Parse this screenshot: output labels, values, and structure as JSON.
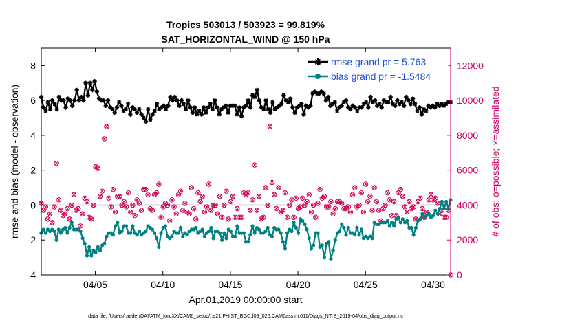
{
  "chart_data": {
    "type": "line",
    "title_line1": "Tropics 503013 / 503923 = 99.819%",
    "title_line2": "SAT_HORIZONTAL_WIND @ 150 hPa",
    "xlabel": "Apr.01,2019 00:00:00 start",
    "ylabel_left": "rmse and bias (model - observation)",
    "ylabel_right": "# of obs: o=possible; ×=assimilated",
    "footnote": "data file: /Users/raeder/DAI/ATM_forcXX/CAM6_setup/f.e21.FHIST_BGC.f09_025.CAM6assim.011/Diags_NTrS_2019-04/obs_diag_output.nc",
    "x_range": [
      1,
      31.3
    ],
    "x_ticks": [
      5,
      10,
      15,
      20,
      25,
      30
    ],
    "x_tick_labels": [
      "04/05",
      "04/10",
      "04/15",
      "04/20",
      "04/25",
      "04/30"
    ],
    "ylim_left": [
      -4,
      9
    ],
    "yticks_left": [
      -4,
      -2,
      0,
      2,
      4,
      6,
      8
    ],
    "ylim_right": [
      0,
      13000
    ],
    "yticks_right": [
      0,
      2000,
      4000,
      6000,
      8000,
      10000,
      12000
    ],
    "legend_location": "top-right",
    "colors": {
      "rmse": "#000000",
      "bias": "#008080",
      "obs": "#cc0055",
      "right_axis": "#cc0066",
      "zero_line": "#bbbbbb"
    },
    "series": [
      {
        "name": "rmse",
        "legend": "rmse grand pr = 5.763",
        "values": [
          6.2,
          5.6,
          5.4,
          5.9,
          5.5,
          6.0,
          5.8,
          5.5,
          6.2,
          6.0,
          6.0,
          5.6,
          6.1,
          6.0,
          5.7,
          6.0,
          6.6,
          6.0,
          6.2,
          6.0,
          7.0,
          6.3,
          7.0,
          6.6,
          7.1,
          6.5,
          6.1,
          6.0,
          6.0,
          5.7,
          6.0,
          5.6,
          5.5,
          5.3,
          5.6,
          5.9,
          5.7,
          5.4,
          5.5,
          5.8,
          5.2,
          5.6,
          5.5,
          5.3,
          5.5,
          5.2,
          5.0,
          4.8,
          5.5,
          4.9,
          5.2,
          5.4,
          5.8,
          5.5,
          5.6,
          5.7,
          5.5,
          5.7,
          6.2,
          6.0,
          6.2,
          6.0,
          5.7,
          6.0,
          5.8,
          5.5,
          6.0,
          5.6,
          5.3,
          5.6,
          5.2,
          5.4,
          5.2,
          5.6,
          5.3,
          5.6,
          5.8,
          5.5,
          6.0,
          5.6,
          5.2,
          5.5,
          5.6,
          5.7,
          5.3,
          5.7,
          5.7,
          5.7,
          5.2,
          5.6,
          5.1,
          5.6,
          5.7,
          6.0,
          5.6,
          6.3,
          6.2,
          6.6,
          6.0,
          5.6,
          5.5,
          6.0,
          5.5,
          5.3,
          5.9,
          5.5,
          5.6,
          5.7,
          5.8,
          6.3,
          6.0,
          5.9,
          6.1,
          5.6,
          5.3,
          5.6,
          5.7,
          5.8,
          5.2,
          5.7,
          5.6,
          5.7,
          6.4,
          6.5,
          6.4,
          6.4,
          6.5,
          6.4,
          6.0,
          6.2,
          5.7,
          5.8,
          5.9,
          5.4,
          5.6,
          5.7,
          5.9,
          6.0,
          5.6,
          5.5,
          5.7,
          5.6,
          5.4,
          5.6,
          5.6,
          5.8,
          5.9,
          5.6,
          6.2,
          5.9,
          6.0,
          5.7,
          5.8,
          5.6,
          6.0,
          5.9,
          5.9,
          6.2,
          5.8,
          5.7,
          6.0,
          5.8,
          5.9,
          5.7,
          6.2,
          6.0,
          5.8,
          6.1,
          5.8,
          5.4,
          5.6,
          5.2,
          5.5,
          5.4,
          5.7,
          5.6,
          5.7,
          5.6,
          5.8,
          5.7,
          5.8,
          5.7,
          5.8,
          5.9,
          5.9
        ]
      },
      {
        "name": "bias",
        "legend": "bias grand pr = -1.5484",
        "values": [
          -1.6,
          -1.4,
          -1.6,
          -1.4,
          -1.5,
          -1.4,
          -1.5,
          -2.0,
          -1.4,
          -1.6,
          -1.4,
          -1.3,
          -1.6,
          -1.3,
          -1.0,
          -1.4,
          -1.4,
          -1.4,
          -1.5,
          -1.9,
          -2.2,
          -2.9,
          -2.4,
          -2.9,
          -2.6,
          -2.7,
          -2.4,
          -2.6,
          -2.3,
          -2.2,
          -1.8,
          -1.6,
          -1.6,
          -1.7,
          -1.2,
          -1.0,
          -1.6,
          -1.5,
          -1.2,
          -1.2,
          -1.6,
          -1.6,
          -1.2,
          -1.6,
          -1.7,
          -1.5,
          -1.7,
          -1.6,
          -1.5,
          -1.2,
          -1.3,
          -1.4,
          -1.6,
          -1.9,
          -2.4,
          -1.6,
          -1.3,
          -1.2,
          -1.8,
          -1.9,
          -1.8,
          -1.5,
          -1.6,
          -1.6,
          -1.3,
          -1.8,
          -1.6,
          -1.7,
          -1.5,
          -1.4,
          -1.4,
          -1.3,
          -1.6,
          -1.5,
          -1.4,
          -1.8,
          -1.6,
          -1.5,
          -1.3,
          -1.9,
          -1.5,
          -1.5,
          -1.6,
          -2.0,
          -1.6,
          -1.9,
          -1.4,
          -1.5,
          -1.8,
          -1.8,
          -1.2,
          -1.6,
          -1.6,
          -1.6,
          -2.1,
          -2.1,
          -1.7,
          -1.2,
          -1.6,
          -1.3,
          -1.4,
          -1.6,
          -1.6,
          -1.5,
          -1.3,
          -1.7,
          -1.8,
          -1.3,
          -1.4,
          -1.4,
          -1.6,
          -2.1,
          -2.5,
          -1.6,
          -1.4,
          -1.5,
          -1.0,
          -1.3,
          -1.6,
          -0.8,
          -0.9,
          -1.1,
          -1.4,
          -1.9,
          -2.5,
          -2.3,
          -1.6,
          -1.6,
          -2.4,
          -2.3,
          -3.0,
          -2.2,
          -2.1,
          -3.1,
          -2.6,
          -2.0,
          -1.6,
          -1.5,
          -1.1,
          -1.3,
          -1.7,
          -1.3,
          -1.6,
          -1.6,
          -1.7,
          -1.3,
          -1.7,
          -1.4,
          -1.9,
          -1.8,
          -1.9,
          -1.8,
          -1.9,
          -1.0,
          -1.1,
          -1.1,
          -1.0,
          -1.0,
          -1.0,
          -0.9,
          -1.2,
          -1.0,
          -1.2,
          -0.8,
          -0.7,
          -1.0,
          -0.8,
          -1.0,
          -0.9,
          -1.3,
          -1.3,
          -1.7,
          -1.3,
          -0.9,
          -0.8,
          -0.5,
          -0.7,
          -0.6,
          -0.5,
          -0.7,
          -0.6,
          -0.3,
          -0.5,
          -0.2,
          0.2,
          -0.2,
          0.2,
          -0.2,
          0.3
        ]
      },
      {
        "name": "obs_possible",
        "values": [
          4100,
          3700,
          3900,
          3200,
          3500,
          3000,
          3900,
          6400,
          4300,
          3700,
          3400,
          3500,
          3800,
          3200,
          4000,
          4600,
          3700,
          3800,
          2800,
          3500,
          4400,
          4200,
          3300,
          3200,
          4000,
          6200,
          6100,
          4500,
          4800,
          7800,
          8500,
          4400,
          3900,
          4900,
          3600,
          4500,
          4500,
          4000,
          4200,
          3900,
          4700,
          3600,
          4000,
          3400,
          4300,
          4100,
          3700,
          4900,
          4900,
          4600,
          3800,
          3700,
          4600,
          4700,
          5200,
          3300,
          3900,
          4100,
          4000,
          3100,
          4300,
          3900,
          3500,
          4600,
          4800,
          3700,
          4100,
          3600,
          3500,
          5000,
          3800,
          3200,
          4700,
          4200,
          4500,
          3600,
          3900,
          5200,
          3700,
          4000,
          4000,
          3500,
          4500,
          3300,
          4000,
          4800,
          3200,
          4200,
          4500,
          3300,
          3800,
          3300,
          3300,
          4700,
          4600,
          4700,
          3700,
          4300,
          6300,
          3700,
          4500,
          3200,
          3300,
          5000,
          4000,
          8500,
          5300,
          4600,
          3800,
          5000,
          3600,
          3700,
          4700,
          3300,
          4000,
          4300,
          3300,
          4400,
          3800,
          3900,
          4400,
          4000,
          4200,
          4600,
          3600,
          4000,
          3300,
          4100,
          4900,
          4400,
          4500,
          3900,
          3900,
          4200,
          3500,
          3800,
          4200,
          4200,
          4100,
          3800,
          3800,
          3900,
          3600,
          4600,
          5000,
          3900,
          4000,
          4700,
          3600,
          5200,
          4200,
          4500,
          3700,
          5000,
          4200,
          3700,
          3100,
          3800,
          4000,
          4700,
          4300,
          3400,
          4200,
          3400,
          4700,
          4900,
          4500,
          3900,
          3600,
          4200,
          3800,
          3900,
          3200,
          4200,
          4400,
          3800,
          3300,
          3600,
          4300,
          4600,
          4300,
          4400,
          4100,
          3500,
          3700,
          3300,
          3300,
          3700,
          0
        ]
      },
      {
        "name": "obs_assimilated",
        "values": [
          4100,
          3700,
          3900,
          3200,
          3500,
          3000,
          3900,
          6400,
          4300,
          3700,
          3400,
          3500,
          3800,
          3200,
          4000,
          4600,
          3700,
          3800,
          2800,
          3500,
          4400,
          4200,
          3300,
          3200,
          4000,
          6200,
          6100,
          4500,
          4800,
          7800,
          8500,
          4400,
          3900,
          4900,
          3600,
          4500,
          4500,
          4000,
          4200,
          3900,
          4700,
          3600,
          4000,
          3400,
          4300,
          4100,
          3700,
          4900,
          4900,
          4600,
          3800,
          3700,
          4600,
          4700,
          5200,
          3300,
          3900,
          4100,
          4000,
          3100,
          4300,
          3900,
          3500,
          4600,
          4800,
          3700,
          4100,
          3600,
          3500,
          5000,
          3800,
          3200,
          4700,
          4200,
          4500,
          3600,
          3900,
          5200,
          3700,
          4000,
          4000,
          3500,
          4500,
          3300,
          4000,
          4800,
          3200,
          4200,
          4500,
          3300,
          3800,
          3300,
          3300,
          4700,
          4600,
          4700,
          3700,
          4300,
          6300,
          3700,
          4500,
          3200,
          3300,
          5000,
          4000,
          8500,
          5300,
          4600,
          3800,
          5000,
          3600,
          3700,
          4700,
          3300,
          4000,
          4300,
          3300,
          4400,
          3800,
          3900,
          4400,
          4000,
          4200,
          4600,
          3600,
          4000,
          3300,
          4100,
          4900,
          4400,
          4500,
          3900,
          3900,
          4200,
          3500,
          3800,
          4200,
          4200,
          4100,
          3800,
          3800,
          3900,
          3600,
          4600,
          5000,
          3900,
          4000,
          4700,
          3600,
          5200,
          4200,
          4500,
          3700,
          5000,
          4200,
          3700,
          3100,
          3800,
          4000,
          4700,
          4300,
          3400,
          4200,
          3400,
          4700,
          4900,
          4500,
          3900,
          3600,
          4200,
          3800,
          3900,
          3200,
          4200,
          4400,
          3800,
          3300,
          3600,
          4300,
          4600,
          4300,
          4400,
          4100,
          3500,
          3700,
          3300,
          3300,
          3700,
          0
        ]
      }
    ]
  }
}
